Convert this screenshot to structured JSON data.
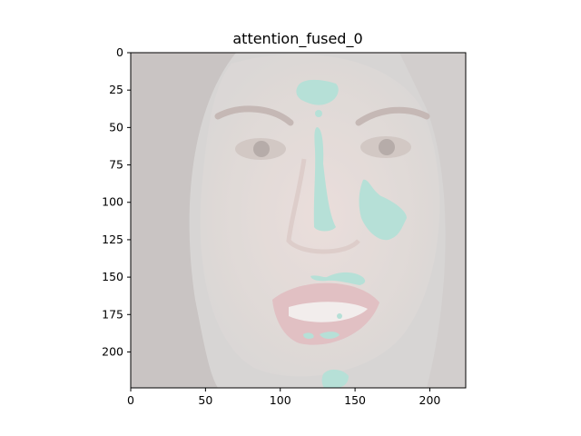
{
  "figure": {
    "title": "attention_fused_0",
    "image": {
      "description": "washed-out face photo with teal attention overlay blobs",
      "base_tint": "#d8d2cf",
      "overlay_color": "#a7d9cf"
    },
    "x_axis": {
      "range": [
        0,
        224
      ],
      "ticks": [
        0,
        50,
        100,
        150,
        200
      ]
    },
    "y_axis": {
      "range": [
        224,
        0
      ],
      "ticks": [
        0,
        25,
        50,
        75,
        100,
        125,
        150,
        175,
        200
      ]
    }
  }
}
